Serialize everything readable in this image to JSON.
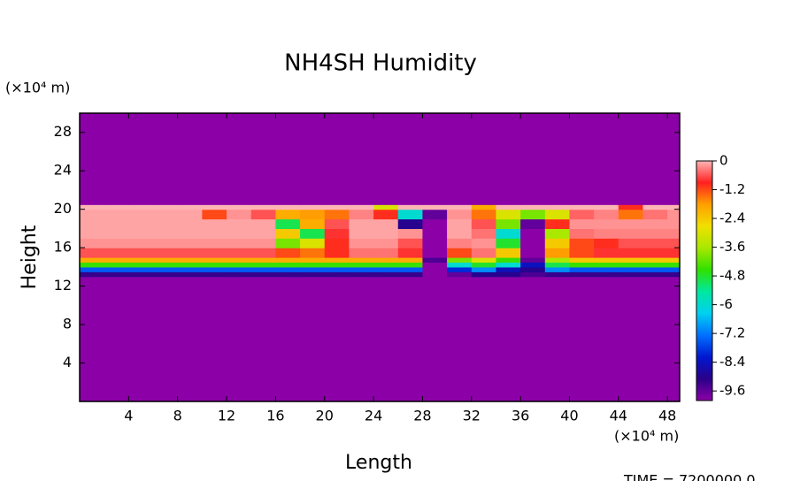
{
  "chart_data": {
    "type": "heatmap",
    "title": "NH4SH Humidity",
    "xlabel": "Length",
    "ylabel": "Height",
    "x_unit": "(×10⁴ m)",
    "y_unit": "(×10⁴ m)",
    "footer": "TIME = 7200000.0",
    "x_edges": [
      0,
      2,
      4,
      6,
      8,
      10,
      12,
      14,
      16,
      18,
      20,
      22,
      24,
      26,
      28,
      30,
      32,
      34,
      36,
      38,
      40,
      42,
      44,
      46,
      48,
      49
    ],
    "y_edges": [
      0,
      12,
      13,
      13.5,
      14,
      14.5,
      15,
      16,
      17,
      18,
      19,
      20,
      20.5,
      30
    ],
    "z": [
      [
        -10,
        -10,
        -10,
        -10,
        -10,
        -10,
        -10,
        -10,
        -10,
        -10,
        -10,
        -10,
        -10,
        -10,
        -10,
        -10,
        -10,
        -10,
        -10,
        -10,
        -10,
        -10,
        -10,
        -10,
        -10
      ],
      [
        -10,
        -10,
        -10,
        -10,
        -10,
        -10,
        -10,
        -10,
        -10,
        -10,
        -10,
        -10,
        -10,
        -10,
        -10,
        -10,
        -10,
        -10,
        -10,
        -10,
        -10,
        -10,
        -10,
        -10,
        -10
      ],
      [
        -9.2,
        -9.2,
        -9.2,
        -9.2,
        -9.2,
        -9.2,
        -9.2,
        -9.2,
        -9.2,
        -9.2,
        -9.2,
        -9.2,
        -9.2,
        -9.2,
        -10,
        -9.6,
        -9,
        -9,
        -9.4,
        -9.2,
        -9.2,
        -9.2,
        -9.2,
        -9.2,
        -9.2
      ],
      [
        -7.5,
        -7.5,
        -7.5,
        -7.5,
        -7.5,
        -7.5,
        -7.5,
        -7.5,
        -7.5,
        -7.5,
        -7.5,
        -7.5,
        -7.5,
        -7.5,
        -10,
        -8,
        -7,
        -8.5,
        -9,
        -7,
        -7.5,
        -7.5,
        -7.5,
        -7.5,
        -7.5
      ],
      [
        -4.5,
        -4.5,
        -4.5,
        -4.5,
        -4.5,
        -4.5,
        -4.5,
        -4.5,
        -4.5,
        -4.5,
        -4.5,
        -4.5,
        -4.5,
        -4.5,
        -10,
        -6,
        -4.8,
        -6,
        -8.4,
        -5,
        -4.5,
        -4.5,
        -4.5,
        -4.5,
        -4.5
      ],
      [
        -2,
        -2,
        -2,
        -2,
        -2,
        -2,
        -2,
        -2,
        -2,
        -2,
        -2,
        -2,
        -2,
        -2,
        -9.4,
        -4,
        -3,
        -4.5,
        -9.6,
        -3.6,
        -2.4,
        -2.4,
        -2.4,
        -2.4,
        -2.4
      ],
      [
        -0.6,
        -0.6,
        -0.6,
        -0.6,
        -0.6,
        -0.6,
        -0.6,
        -0.6,
        -1.2,
        -1.5,
        -1,
        -0.4,
        -0.4,
        -0.8,
        -10,
        -1.2,
        -0.4,
        -2.4,
        -10,
        -1.8,
        -1.2,
        -0.8,
        -0.8,
        -0.8,
        -0.8
      ],
      [
        -0.2,
        -0.2,
        -0.2,
        -0.2,
        -0.2,
        -0.2,
        -0.2,
        -0.2,
        -4,
        -3,
        -1,
        -0.2,
        -0.2,
        -0.6,
        -10,
        -0.3,
        -0.2,
        -4.8,
        -10,
        -2.4,
        -1.2,
        -1,
        -0.6,
        -0.6,
        -0.6
      ],
      [
        -0.1,
        -0.1,
        -0.1,
        -0.1,
        -0.1,
        -0.1,
        -0.1,
        -0.1,
        -2.4,
        -5,
        -0.8,
        -0.1,
        -0.1,
        -0.2,
        -10,
        -0.1,
        -0.4,
        -6,
        -10,
        -3.6,
        -0.4,
        -0.3,
        -0.3,
        -0.3,
        -0.3
      ],
      [
        -0.1,
        -0.1,
        -0.1,
        -0.1,
        -0.1,
        -0.1,
        -0.1,
        -0.1,
        -5,
        -2,
        -0.6,
        -0.1,
        -0.1,
        -9,
        -10,
        -0.1,
        -0.6,
        -4,
        -9.6,
        -1,
        -0.2,
        -0.2,
        -0.2,
        -0.2,
        -0.2
      ],
      [
        -0.1,
        -0.1,
        -0.1,
        -0.1,
        -0.1,
        -1.2,
        -0.2,
        -0.6,
        -2,
        -1.8,
        -1.5,
        -0.3,
        -1,
        -6,
        -9.6,
        -0.2,
        -1.5,
        -3,
        -4,
        -3,
        -0.5,
        -0.3,
        -1.5,
        -0.4,
        -0.2
      ],
      [
        0,
        0,
        0,
        0,
        0,
        0,
        0,
        0,
        0,
        0,
        0,
        0,
        -3,
        0,
        0,
        0,
        -2,
        0,
        0,
        0,
        0,
        0,
        -1,
        0,
        0
      ],
      [
        -10,
        -10,
        -10,
        -10,
        -10,
        -10,
        -10,
        -10,
        -10,
        -10,
        -10,
        -10,
        -10,
        -10,
        -10,
        -10,
        -10,
        -10,
        -10,
        -10,
        -10,
        -10,
        -10,
        -10,
        -10
      ]
    ],
    "xlim": [
      0,
      49
    ],
    "ylim": [
      0,
      30
    ],
    "xticks": [
      4,
      8,
      12,
      16,
      20,
      24,
      28,
      32,
      36,
      40,
      44,
      48
    ],
    "yticks": [
      4,
      8,
      12,
      16,
      20,
      24,
      28
    ],
    "colorbar": {
      "zlim": [
        -10,
        0
      ],
      "ticks": [
        0,
        -1.2,
        -2.4,
        -3.6,
        -4.8,
        -6,
        -7.2,
        -8.4,
        -9.6
      ],
      "colors": [
        "#8c00a8",
        "#2a0088",
        "#0018d0",
        "#0070ff",
        "#00d0f0",
        "#00e8a0",
        "#30e000",
        "#a8e800",
        "#f0e000",
        "#ffa000",
        "#ff2020",
        "#ffb4b4"
      ]
    }
  }
}
